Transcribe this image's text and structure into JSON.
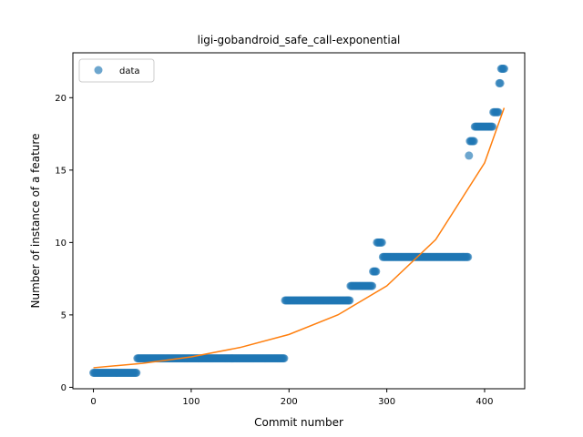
{
  "chart_data": {
    "type": "scatter",
    "title": "ligi-gobandroid_safe_call-exponential",
    "xlabel": "Commit number",
    "ylabel": "Number of instance of a feature",
    "xlim": [
      -21,
      441
    ],
    "ylim": [
      -0.1,
      23.1
    ],
    "xticks": [
      0,
      100,
      200,
      300,
      400
    ],
    "yticks": [
      0,
      5,
      10,
      15,
      20
    ],
    "legend": {
      "position": "top-left",
      "entries": [
        "data"
      ]
    },
    "grid": false,
    "colors": {
      "data": "#1f77b4",
      "fit": "#ff7f0e"
    },
    "data_segments": [
      {
        "x_start": 0,
        "x_end": 45,
        "y": 1
      },
      {
        "x_start": 45,
        "x_end": 196,
        "y": 2
      },
      {
        "x_start": 196,
        "x_end": 263,
        "y": 6
      },
      {
        "x_start": 263,
        "x_end": 286,
        "y": 7
      },
      {
        "x_start": 286,
        "x_end": 290,
        "y": 8
      },
      {
        "x_start": 290,
        "x_end": 296,
        "y": 10
      },
      {
        "x_start": 296,
        "x_end": 384,
        "y": 9
      },
      {
        "x_start": 384,
        "x_end": 385,
        "y": 16
      },
      {
        "x_start": 385,
        "x_end": 390,
        "y": 17
      },
      {
        "x_start": 390,
        "x_end": 409,
        "y": 18
      },
      {
        "x_start": 409,
        "x_end": 415,
        "y": 19
      },
      {
        "x_start": 415,
        "x_end": 417,
        "y": 21
      },
      {
        "x_start": 417,
        "x_end": 421,
        "y": 22
      }
    ],
    "fit_curve": {
      "x": [
        0,
        50,
        100,
        150,
        200,
        250,
        300,
        350,
        400,
        420
      ],
      "y": [
        1.35,
        1.65,
        2.1,
        2.75,
        3.65,
        5.0,
        7.0,
        10.2,
        15.5,
        19.3
      ]
    }
  }
}
